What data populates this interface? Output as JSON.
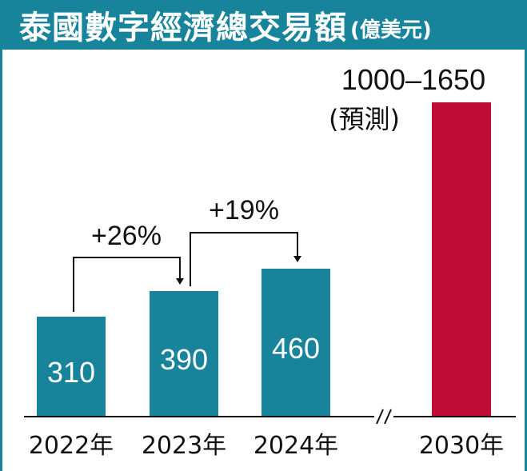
{
  "title": "泰國數字經濟總交易額",
  "unit": "(億美元)",
  "chart_data": {
    "type": "bar",
    "categories": [
      "2022年",
      "2023年",
      "2024年",
      "2030年"
    ],
    "values": [
      310,
      390,
      460,
      1650
    ],
    "value_labels": [
      "310",
      "390",
      "460",
      "1000–1650\n(預測)"
    ],
    "forecast_range": [
      1000,
      1650
    ],
    "forecast_note": "(預測)",
    "forecast_label": "1000–1650",
    "axis_break_between": [
      "2024年",
      "2030年"
    ],
    "growth_annotations": [
      {
        "from": "2022年",
        "to": "2023年",
        "label": "+26%"
      },
      {
        "from": "2023年",
        "to": "2024年",
        "label": "+19%"
      }
    ],
    "title": "泰國數字經濟總交易額",
    "xlabel": "",
    "ylabel": "",
    "grid": false,
    "colors": {
      "bar": "#17849b",
      "forecast_bar": "#c00d36",
      "header": "#17849b"
    }
  }
}
